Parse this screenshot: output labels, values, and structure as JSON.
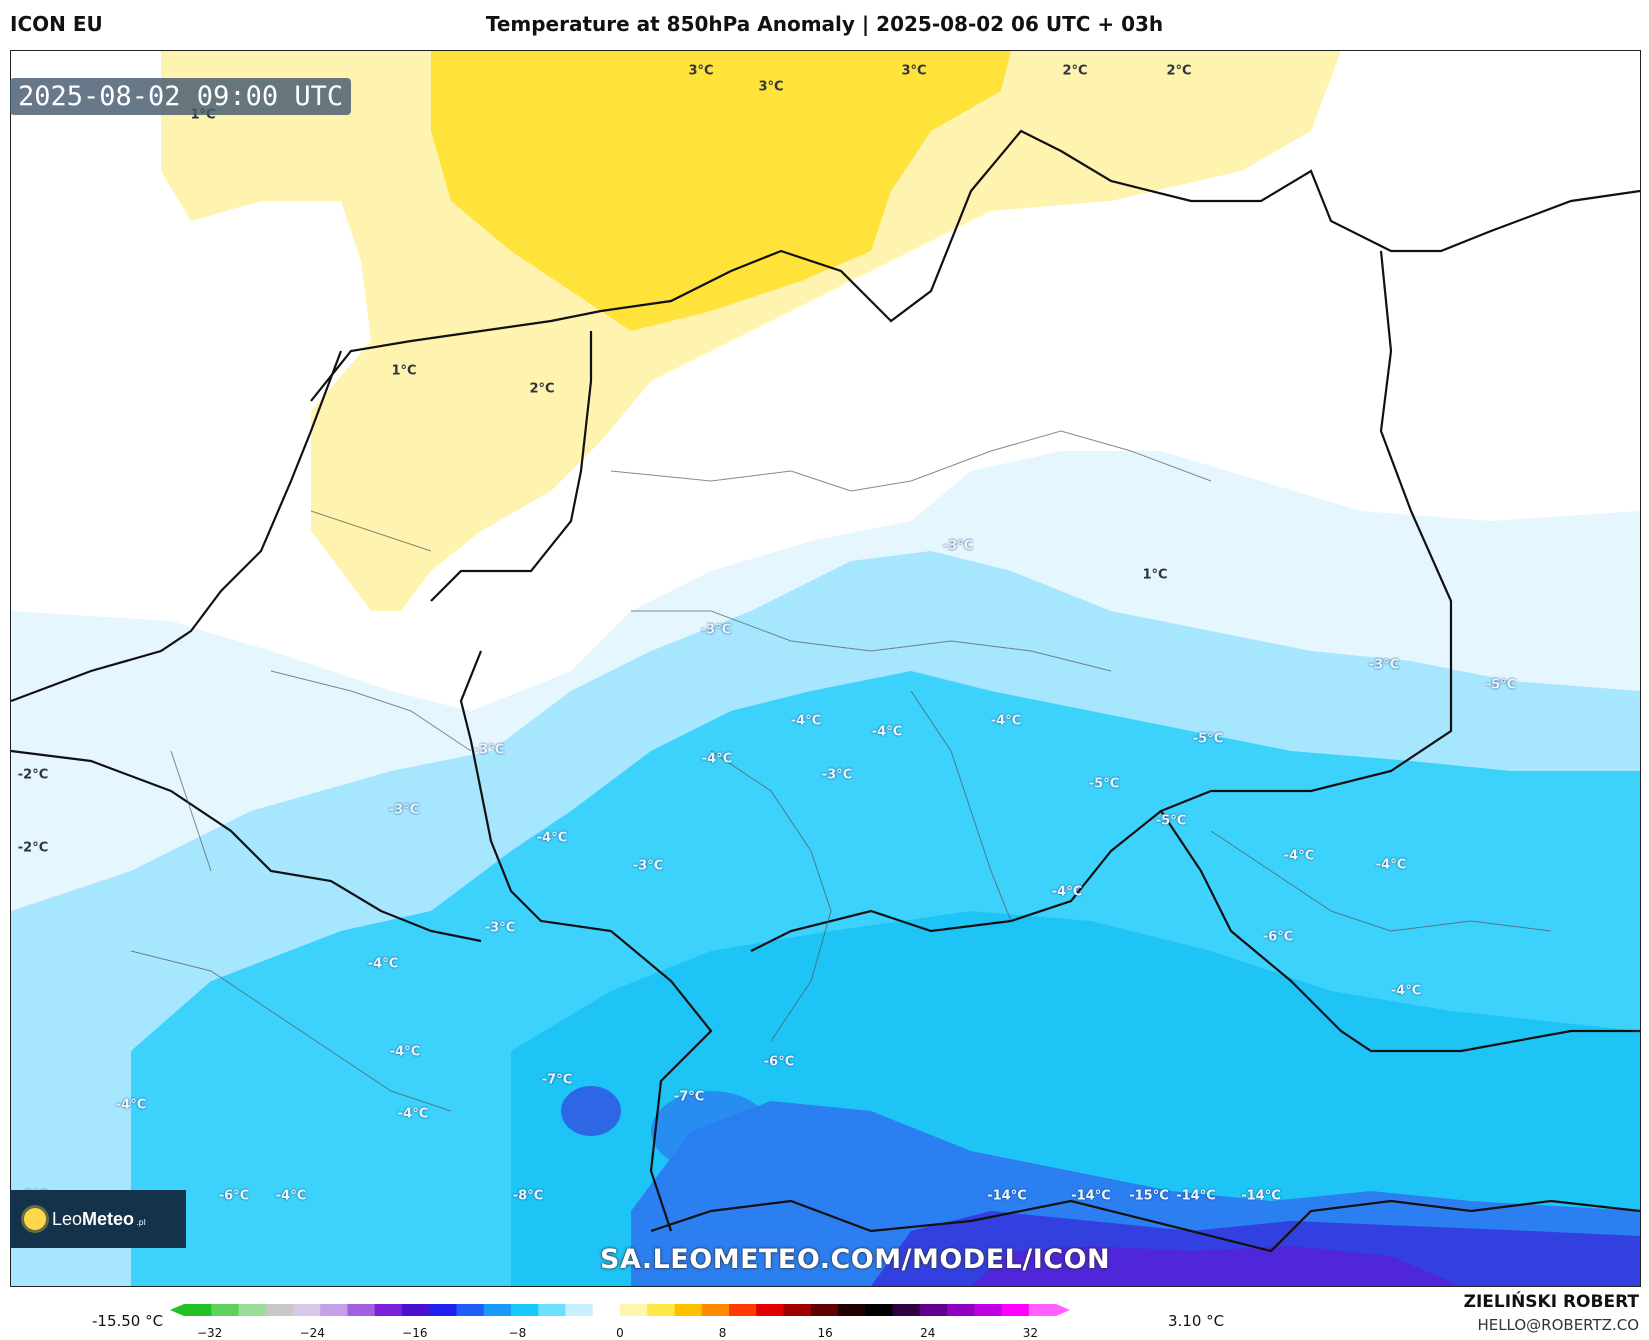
{
  "header": {
    "model": "ICON EU",
    "title": "Temperature at 850hPa Anomaly | 2025-08-02 06 UTC + 03h"
  },
  "map": {
    "valid_time": "2025-08-02 09:00 UTC",
    "temperature_labels": [
      "1°C",
      "3°C",
      "3°C",
      "3°C",
      "2°C",
      "2°C",
      "1°C",
      "2°C",
      "-3°C",
      "1°C",
      "-3°C",
      "-3°C",
      "-4°C",
      "-4°C",
      "-4°C",
      "-4°C",
      "-3°C",
      "-3°C",
      "-5°C",
      "-5°C",
      "-2°C",
      "-3°C",
      "-2°C",
      "-4°C",
      "-3°C",
      "-5°C",
      "-4°C",
      "-4°C",
      "-4°C",
      "-6°C",
      "-3°C",
      "-4°C",
      "-4°C",
      "-4°C",
      "-6°C",
      "-7°C",
      "-7°C",
      "-4°C",
      "-4°C",
      "-8°C",
      "-6°C",
      "-4°C",
      "-8°C",
      "-14°C",
      "-14°C",
      "-15°C",
      "-14°C",
      "-14°C",
      "-5°C"
    ],
    "watermark": "SA.LEOMETEO.COM/MODEL/ICON"
  },
  "logo": {
    "name_light": "Leo",
    "name_bold": "Meteo",
    "tld": ".pl"
  },
  "colorbar": {
    "min_label": "-15.50 °C",
    "max_label": "3.10 °C",
    "ticks": [
      "−32",
      "−24",
      "−16",
      "−8",
      "0",
      "8",
      "16",
      "24",
      "32"
    ],
    "tick_values": [
      -32,
      -24,
      -16,
      -8,
      0,
      8,
      16,
      24,
      32
    ],
    "range": [
      -34,
      34
    ],
    "colors": [
      "#22c022",
      "#5ed05e",
      "#9ade9a",
      "#c8c8c8",
      "#d8c8e8",
      "#c4a0e8",
      "#a060e0",
      "#7a20d8",
      "#4a10d0",
      "#2020f0",
      "#1f5ff8",
      "#1a9af8",
      "#19c8fa",
      "#6ee0ff",
      "#c8f0ff",
      "#ffffff",
      "#fff4b0",
      "#ffe84a",
      "#ffc000",
      "#ff8c00",
      "#ff3c00",
      "#e00000",
      "#a00000",
      "#600000",
      "#200000",
      "#000000",
      "#300040",
      "#600090",
      "#9000c0",
      "#c000e0",
      "#ff00ff",
      "#ff60ff"
    ]
  },
  "credits": {
    "author": "ZIELIŃSKI ROBERT",
    "email": "HELLO@ROBERTZ.CO"
  },
  "palette": {
    "yellow_strong": "#ffe23a",
    "yellow_light": "#fff3b0",
    "white": "#ffffff",
    "ice": "#e6f6ff",
    "cyan_light": "#a6e6ff",
    "cyan": "#3cd2fb",
    "cyan_mid": "#1ec4f6",
    "blue": "#2b7ff0",
    "blue_deep": "#3340e0",
    "violet": "#5a1ed8"
  }
}
